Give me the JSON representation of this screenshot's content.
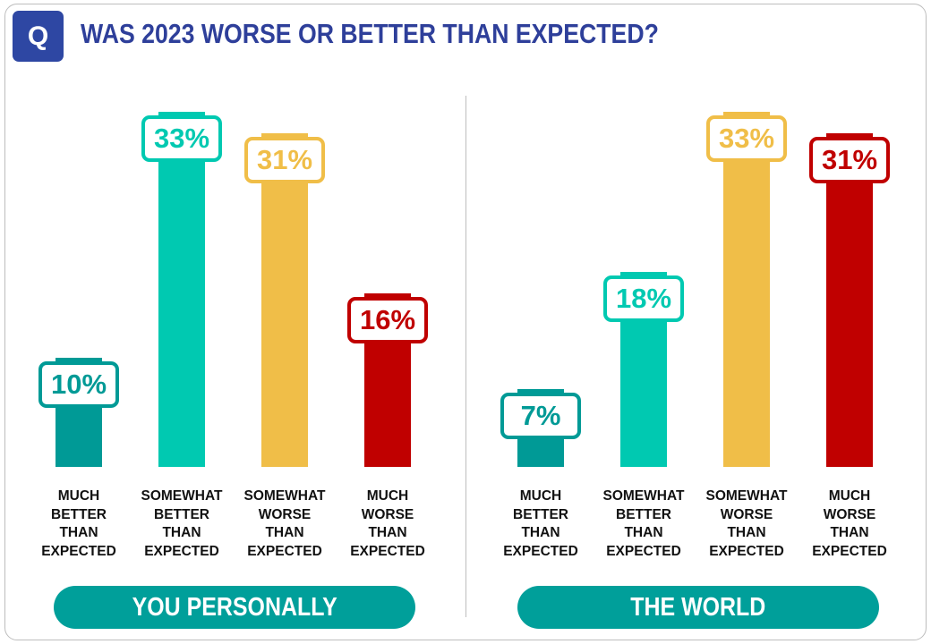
{
  "header": {
    "q_badge": "Q",
    "title": "WAS 2023 WORSE OR BETTER THAN EXPECTED?"
  },
  "chart_data": [
    {
      "type": "bar",
      "title": "YOU PERSONALLY",
      "categories": [
        "MUCH BETTER THAN EXPECTED",
        "SOMEWHAT BETTER THAN EXPECTED",
        "SOMEWHAT WORSE THAN EXPECTED",
        "MUCH WORSE THAN EXPECTED"
      ],
      "values": [
        10,
        33,
        31,
        16
      ],
      "labels": [
        "10%",
        "33%",
        "31%",
        "16%"
      ],
      "ylim": [
        0,
        33
      ],
      "colors": [
        "#009A96",
        "#00C9B1",
        "#F0BE48",
        "#C00000"
      ]
    },
    {
      "type": "bar",
      "title": "THE WORLD",
      "categories": [
        "MUCH BETTER THAN EXPECTED",
        "SOMEWHAT BETTER THAN EXPECTED",
        "SOMEWHAT WORSE THAN EXPECTED",
        "MUCH WORSE THAN EXPECTED"
      ],
      "values": [
        7,
        18,
        33,
        31
      ],
      "labels": [
        "7%",
        "18%",
        "33%",
        "31%"
      ],
      "ylim": [
        0,
        33
      ],
      "colors": [
        "#009A96",
        "#00C9B1",
        "#F0BE48",
        "#C00000"
      ]
    }
  ]
}
